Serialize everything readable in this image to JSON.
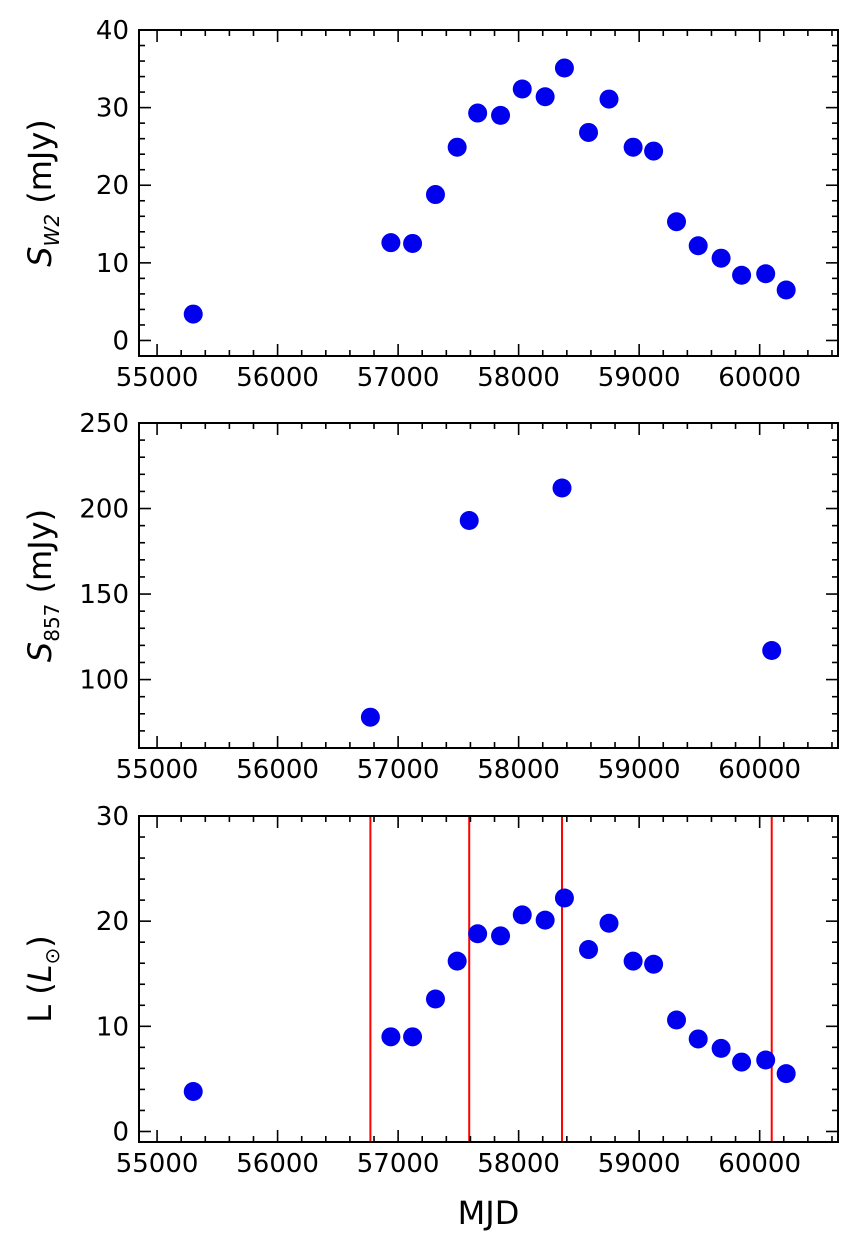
{
  "chart_data": [
    {
      "type": "scatter",
      "xlabel": "",
      "ylabel_main": "S",
      "ylabel_sub": "W2",
      "ylabel_units": " (mJy)",
      "xlim": [
        54850,
        60650
      ],
      "ylim": [
        -2,
        40
      ],
      "xticks": [
        55000,
        56000,
        57000,
        58000,
        59000,
        60000
      ],
      "yticks": [
        0,
        10,
        20,
        30,
        40
      ],
      "color": "#0000ee",
      "x": [
        55300,
        56940,
        57120,
        57310,
        57490,
        57660,
        57850,
        58030,
        58220,
        58380,
        58580,
        58750,
        58950,
        59120,
        59310,
        59490,
        59680,
        59850,
        60050,
        60220
      ],
      "y": [
        3.4,
        12.6,
        12.5,
        18.8,
        24.9,
        29.3,
        29.0,
        32.4,
        31.4,
        35.1,
        26.8,
        31.1,
        24.9,
        24.4,
        15.3,
        12.2,
        10.6,
        8.4,
        8.6,
        6.5
      ]
    },
    {
      "type": "scatter",
      "xlabel": "",
      "ylabel_main": "S",
      "ylabel_sub": "857",
      "ylabel_units": " (mJy)",
      "xlim": [
        54850,
        60650
      ],
      "ylim": [
        60,
        250
      ],
      "xticks": [
        55000,
        56000,
        57000,
        58000,
        59000,
        60000
      ],
      "yticks": [
        100,
        150,
        200,
        250
      ],
      "color": "#0000ee",
      "x": [
        56770,
        57590,
        58360,
        60100
      ],
      "y": [
        78,
        193,
        212,
        117
      ]
    },
    {
      "type": "scatter",
      "xlabel": "MJD",
      "ylabel_main": "L (",
      "ylabel_italic": "L",
      "ylabel_sub": "⊙",
      "ylabel_units": ")",
      "xlim": [
        54850,
        60650
      ],
      "ylim": [
        -1,
        30
      ],
      "xticks": [
        55000,
        56000,
        57000,
        58000,
        59000,
        60000
      ],
      "yticks": [
        0,
        10,
        20,
        30
      ],
      "color": "#0000ee",
      "vlines": [
        56770,
        57590,
        58360,
        60100
      ],
      "vline_color": "#ff0000",
      "x": [
        55300,
        56940,
        57120,
        57310,
        57490,
        57660,
        57850,
        58030,
        58220,
        58380,
        58580,
        58750,
        58950,
        59120,
        59310,
        59490,
        59680,
        59850,
        60050,
        60220
      ],
      "y": [
        3.8,
        9.0,
        9.0,
        12.6,
        16.2,
        18.8,
        18.6,
        20.6,
        20.1,
        22.2,
        17.3,
        19.8,
        16.2,
        15.9,
        10.6,
        8.8,
        7.9,
        6.6,
        6.8,
        5.5
      ]
    }
  ]
}
